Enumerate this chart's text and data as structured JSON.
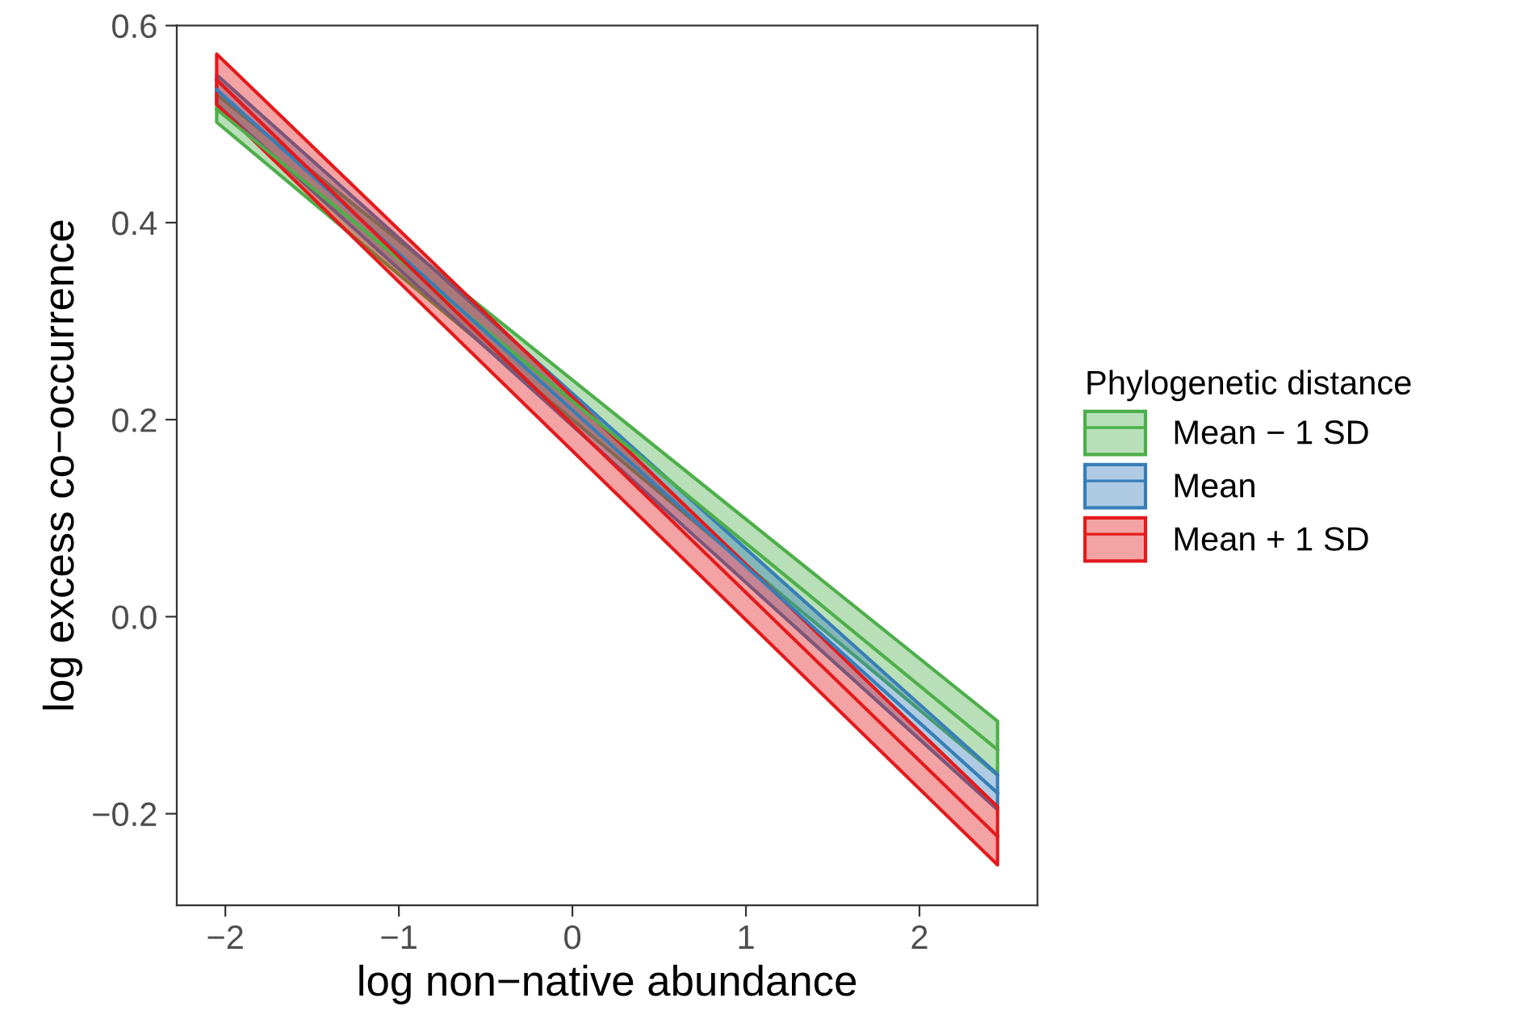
{
  "chart_data": {
    "type": "line",
    "xlabel": "log non−native abundance",
    "ylabel": "log excess co−occurrence",
    "legend_title": "Phylogenetic distance",
    "x": [
      -2.05,
      2.45
    ],
    "series": [
      {
        "name": "Mean − 1 SD",
        "color": "#4daf4a",
        "values": [
          0.515,
          -0.135
        ],
        "lower": [
          0.502,
          -0.161
        ],
        "upper": [
          0.53,
          -0.106
        ]
      },
      {
        "name": "Mean",
        "color": "#377eb8",
        "values": [
          0.535,
          -0.179
        ],
        "lower": [
          0.52,
          -0.196
        ],
        "upper": [
          0.55,
          -0.16
        ]
      },
      {
        "name": "Mean + 1 SD",
        "color": "#e41a1c",
        "values": [
          0.545,
          -0.223
        ],
        "lower": [
          0.52,
          -0.252
        ],
        "upper": [
          0.571,
          -0.193
        ]
      }
    ],
    "xlim": [
      -2.28,
      2.68
    ],
    "ylim": [
      -0.293,
      0.6
    ],
    "xticks": [
      {
        "value": -2,
        "label": "−2"
      },
      {
        "value": -1,
        "label": "−1"
      },
      0,
      1,
      2
    ],
    "yticks": [
      {
        "value": -0.2,
        "label": "−0.2"
      },
      {
        "value": 0.0,
        "label": "0.0"
      },
      0.2,
      0.4,
      0.6
    ],
    "grid": false,
    "legend": "right",
    "marker": "none",
    "line_style": "solid"
  }
}
